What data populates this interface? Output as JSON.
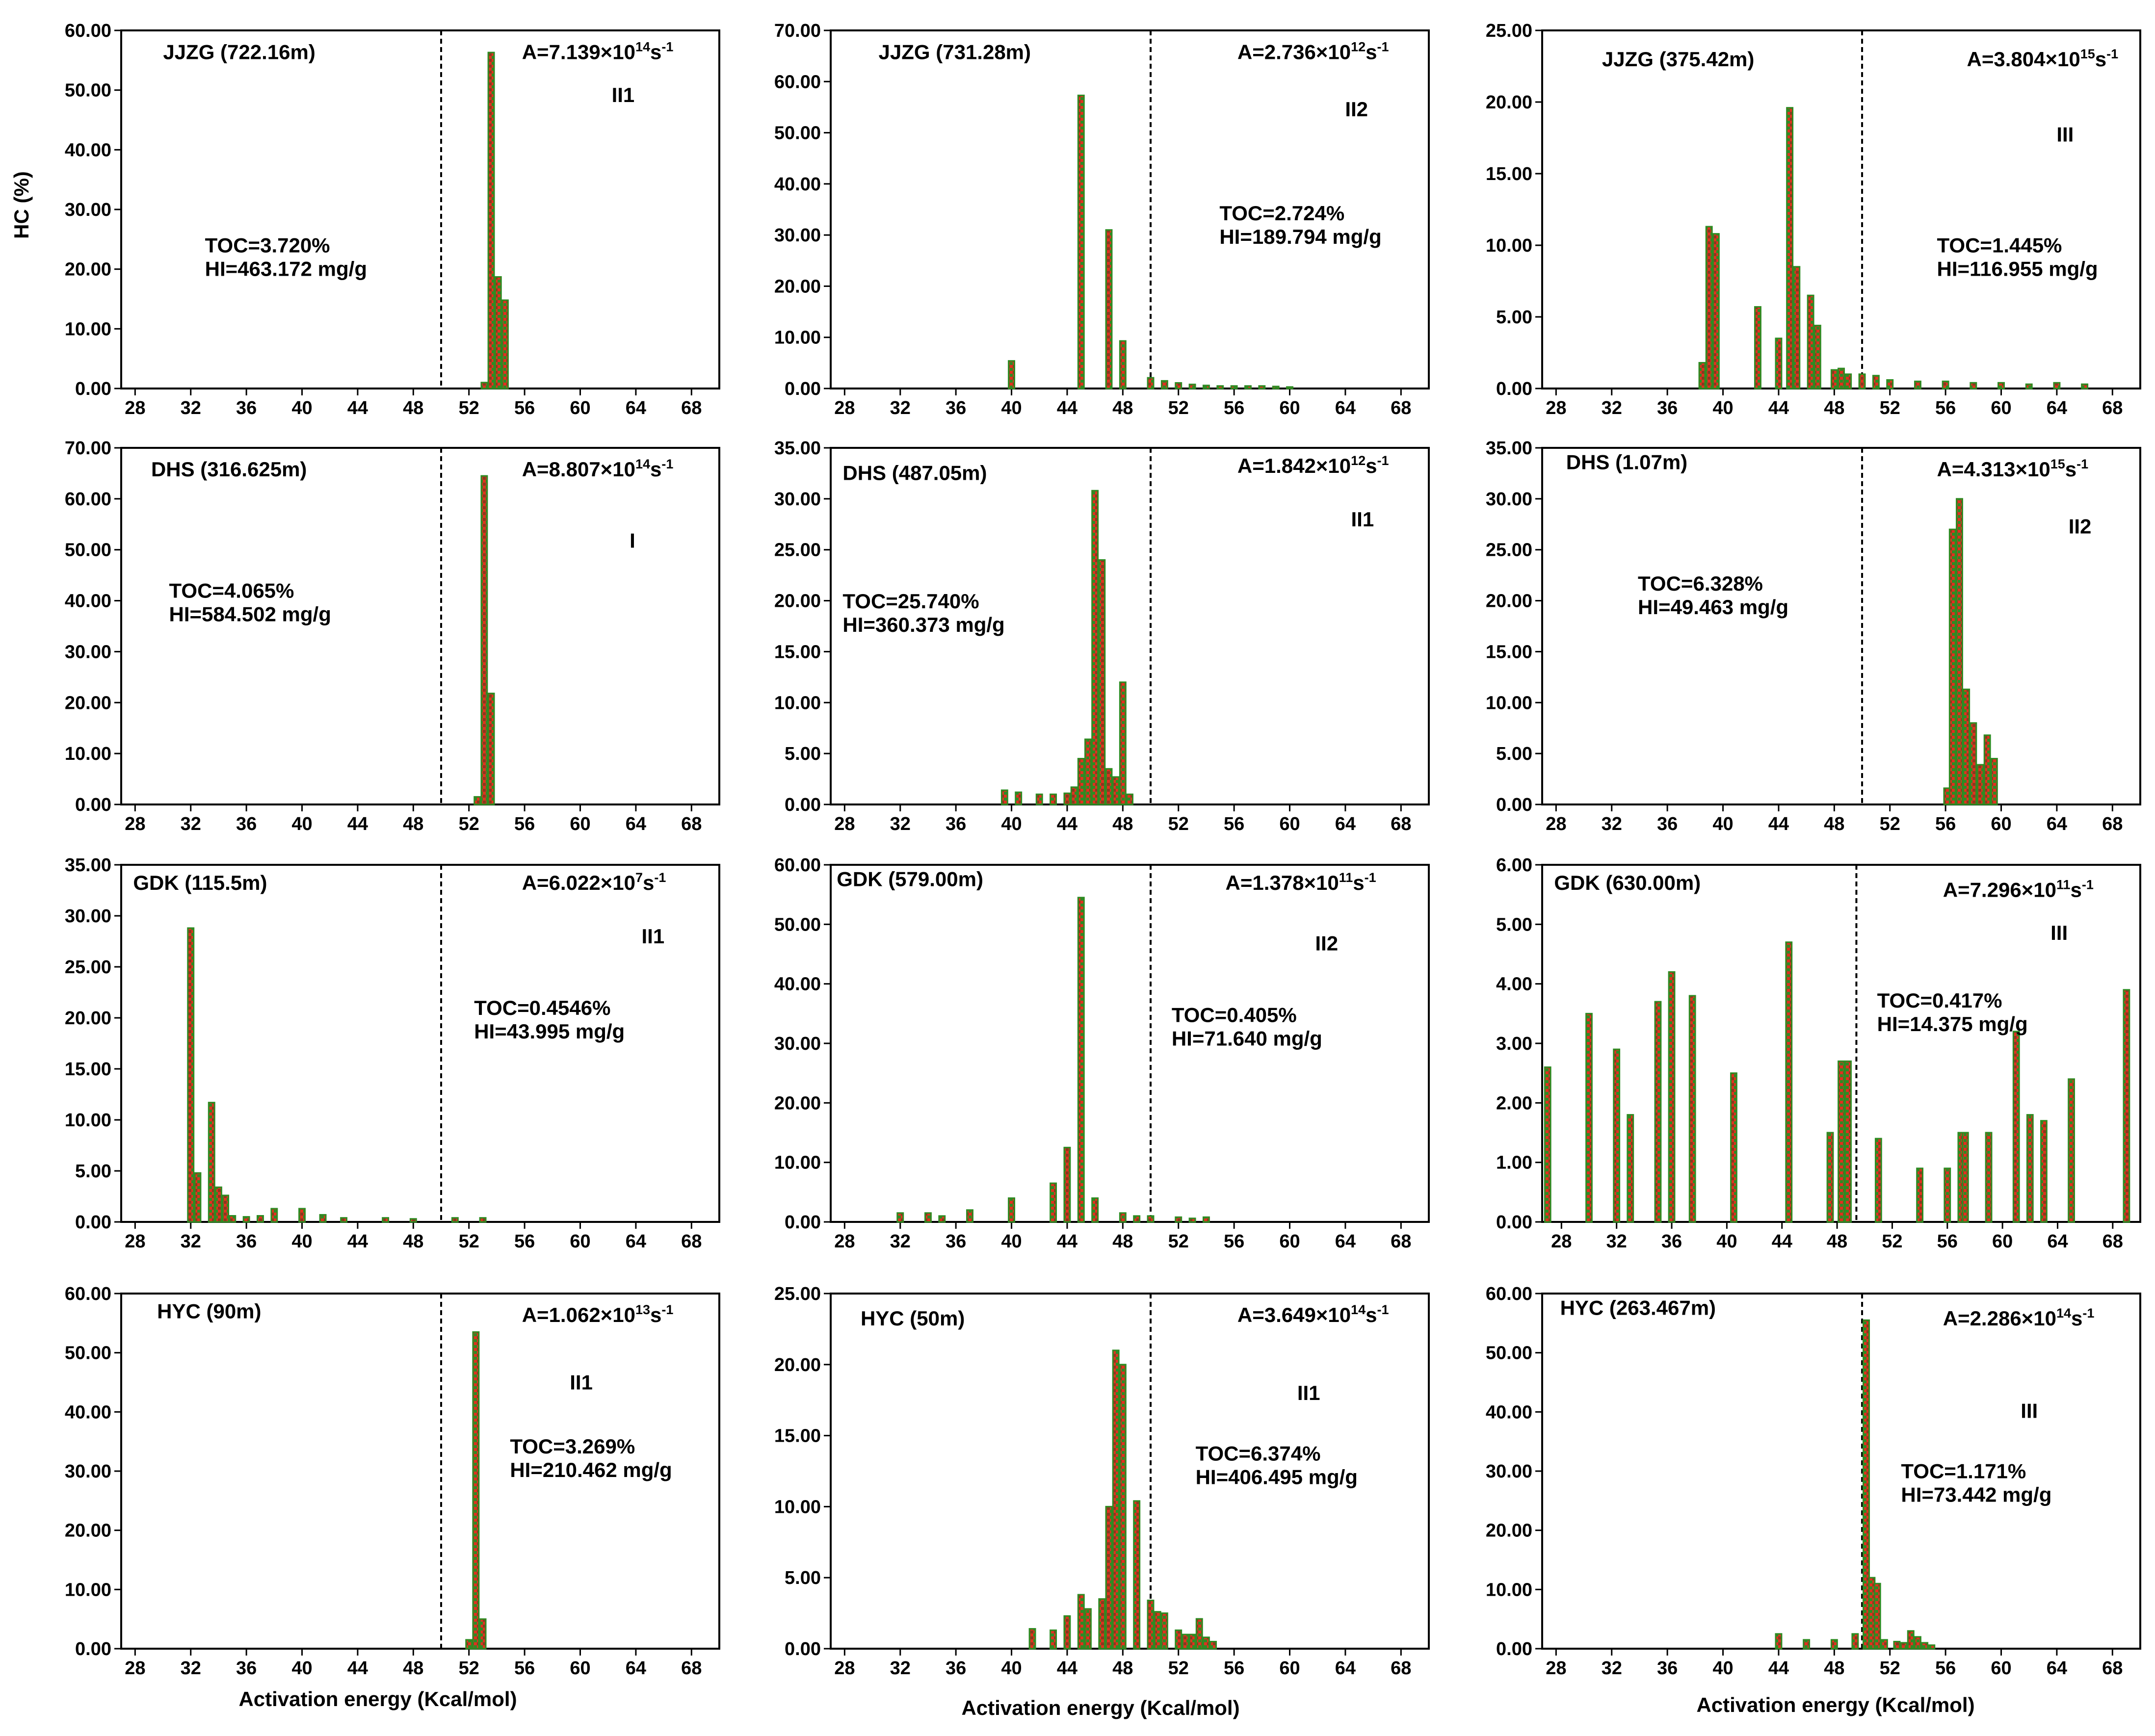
{
  "figure": {
    "ylabel": "HC (%)",
    "xlabel": "Activation energy (Kcal/mol)",
    "colors": {
      "bar_fill": "#e0321e",
      "bar_edge": "#2e8b22",
      "axis": "#000000"
    }
  },
  "chart_data": [
    {
      "type": "bar",
      "title": "JJZG (722.16m)",
      "a_prefix": "A=7.139×10",
      "a_exp": "14",
      "a_unit": "s",
      "a_unit_exp": "-1",
      "kerogen_type": "II1",
      "toc": "TOC=3.720%",
      "hi": "HI=463.172 mg/g",
      "xlabel": "Activation energy (Kcal/mol)",
      "ylabel": "HC (%)",
      "ylim": [
        0,
        60
      ],
      "xlim": [
        27,
        70
      ],
      "divider_x": 50,
      "yticks": [
        "0.00",
        "10.00",
        "20.00",
        "30.00",
        "40.00",
        "50.00",
        "60.00"
      ],
      "xticks": [
        "28",
        "32",
        "36",
        "40",
        "44",
        "48",
        "52",
        "56",
        "60",
        "64",
        "68"
      ],
      "x": [
        53.1,
        53.6,
        54.1,
        54.6
      ],
      "values": [
        1.0,
        56.3,
        18.7,
        14.8
      ]
    },
    {
      "type": "bar",
      "title": "JJZG (731.28m)",
      "a_prefix": "A=2.736×10",
      "a_exp": "12",
      "a_unit": "s",
      "a_unit_exp": "-1",
      "kerogen_type": "II2",
      "toc": "TOC=2.724%",
      "hi": "HI=189.794 mg/g",
      "xlabel": "Activation energy (Kcal/mol)",
      "ylabel": "HC (%)",
      "ylim": [
        0,
        70
      ],
      "xlim": [
        27,
        70
      ],
      "divider_x": 50,
      "yticks": [
        "0.00",
        "10.00",
        "20.00",
        "30.00",
        "40.00",
        "50.00",
        "60.00",
        "70.00"
      ],
      "xticks": [
        "28",
        "32",
        "36",
        "40",
        "44",
        "48",
        "52",
        "56",
        "60",
        "64",
        "68"
      ],
      "x": [
        40,
        45,
        47,
        48,
        50,
        51,
        52,
        53,
        54,
        55,
        56,
        57,
        58,
        59,
        60
      ],
      "values": [
        5.4,
        57.3,
        31.0,
        9.3,
        2.1,
        1.5,
        1.1,
        0.8,
        0.6,
        0.5,
        0.5,
        0.5,
        0.5,
        0.4,
        0.3
      ]
    },
    {
      "type": "bar",
      "title": "JJZG (375.42m)",
      "a_prefix": "A=3.804×10",
      "a_exp": "15",
      "a_unit": "s",
      "a_unit_exp": "-1",
      "kerogen_type": "III",
      "toc": "TOC=1.445%",
      "hi": "HI=116.955 mg/g",
      "xlabel": "Activation energy (Kcal/mol)",
      "ylabel": "HC (%)",
      "ylim": [
        0,
        25
      ],
      "xlim": [
        27,
        70
      ],
      "divider_x": 50,
      "yticks": [
        "0.00",
        "5.00",
        "10.00",
        "15.00",
        "20.00",
        "25.00"
      ],
      "xticks": [
        "28",
        "32",
        "36",
        "40",
        "44",
        "48",
        "52",
        "56",
        "60",
        "64",
        "68"
      ],
      "x": [
        38.5,
        39,
        39.5,
        42.5,
        44,
        44.8,
        45.3,
        46.3,
        46.8,
        48,
        48.5,
        49,
        50,
        51,
        52,
        54,
        56,
        58,
        60,
        62,
        64,
        66
      ],
      "values": [
        1.8,
        11.3,
        10.8,
        5.7,
        3.5,
        19.6,
        8.5,
        6.5,
        4.4,
        1.3,
        1.4,
        1.0,
        1.0,
        0.9,
        0.6,
        0.5,
        0.5,
        0.4,
        0.4,
        0.3,
        0.4,
        0.3
      ]
    },
    {
      "type": "bar",
      "title": "DHS (316.625m)",
      "a_prefix": "A=8.807×10",
      "a_exp": "14",
      "a_unit": "s",
      "a_unit_exp": "-1",
      "kerogen_type": "I",
      "toc": "TOC=4.065%",
      "hi": "HI=584.502 mg/g",
      "xlabel": "Activation energy (Kcal/mol)",
      "ylabel": "HC (%)",
      "ylim": [
        0,
        70
      ],
      "xlim": [
        27,
        70
      ],
      "divider_x": 50,
      "yticks": [
        "0.00",
        "10.00",
        "20.00",
        "30.00",
        "40.00",
        "50.00",
        "60.00",
        "70.00"
      ],
      "xticks": [
        "28",
        "32",
        "36",
        "40",
        "44",
        "48",
        "52",
        "56",
        "60",
        "64",
        "68"
      ],
      "x": [
        52.6,
        53.1,
        53.6
      ],
      "values": [
        1.5,
        64.5,
        21.8
      ]
    },
    {
      "type": "bar",
      "title": "DHS (487.05m)",
      "a_prefix": "A=1.842×10",
      "a_exp": "12",
      "a_unit": "s",
      "a_unit_exp": "-1",
      "kerogen_type": "II1",
      "toc": "TOC=25.740%",
      "hi": "HI=360.373 mg/g",
      "xlabel": "Activation energy (Kcal/mol)",
      "ylabel": "HC (%)",
      "ylim": [
        0,
        35
      ],
      "xlim": [
        27,
        70
      ],
      "divider_x": 50,
      "yticks": [
        "0.00",
        "5.00",
        "10.00",
        "15.00",
        "20.00",
        "25.00",
        "30.00",
        "35.00"
      ],
      "xticks": [
        "28",
        "32",
        "36",
        "40",
        "44",
        "48",
        "52",
        "56",
        "60",
        "64",
        "68"
      ],
      "x": [
        39.5,
        40.5,
        42,
        43,
        44,
        44.5,
        45,
        45.5,
        46,
        46.5,
        47,
        47.5,
        48,
        48.5
      ],
      "values": [
        1.4,
        1.2,
        1.0,
        1.0,
        1.1,
        1.7,
        4.5,
        6.4,
        30.8,
        24.0,
        3.5,
        2.7,
        12.0,
        1.0
      ]
    },
    {
      "type": "bar",
      "title": "DHS (1.07m)",
      "a_prefix": "A=4.313×10",
      "a_exp": "15",
      "a_unit": "s",
      "a_unit_exp": "-1",
      "kerogen_type": "II2",
      "toc": "TOC=6.328%",
      "hi": "HI=49.463 mg/g",
      "xlabel": "Activation energy (Kcal/mol)",
      "ylabel": "HC (%)",
      "ylim": [
        0,
        35
      ],
      "xlim": [
        27,
        70
      ],
      "divider_x": 50,
      "yticks": [
        "0.00",
        "5.00",
        "10.00",
        "15.00",
        "20.00",
        "25.00",
        "30.00",
        "35.00"
      ],
      "xticks": [
        "28",
        "32",
        "36",
        "40",
        "44",
        "48",
        "52",
        "56",
        "60",
        "64",
        "68"
      ],
      "x": [
        56.1,
        56.5,
        57,
        57.5,
        58,
        58.5,
        59,
        59.5
      ],
      "values": [
        1.6,
        27.0,
        30.0,
        11.3,
        8.0,
        3.9,
        6.8,
        4.5
      ]
    },
    {
      "type": "bar",
      "title": "GDK (115.5m)",
      "a_prefix": "A=6.022×10",
      "a_exp": "7",
      "a_unit": "s",
      "a_unit_exp": "-1",
      "kerogen_type": "II1",
      "toc": "TOC=0.4546%",
      "hi": "HI=43.995 mg/g",
      "xlabel": "Activation energy (Kcal/mol)",
      "ylabel": "HC (%)",
      "ylim": [
        0,
        35
      ],
      "xlim": [
        27,
        70
      ],
      "divider_x": 50,
      "yticks": [
        "0.00",
        "5.00",
        "10.00",
        "15.00",
        "20.00",
        "25.00",
        "30.00",
        "35.00"
      ],
      "xticks": [
        "28",
        "32",
        "36",
        "40",
        "44",
        "48",
        "52",
        "56",
        "60",
        "64",
        "68"
      ],
      "x": [
        32,
        32.5,
        33.5,
        34,
        34.5,
        35,
        36,
        37,
        38,
        40,
        41.5,
        43,
        46,
        48,
        51,
        53
      ],
      "values": [
        28.8,
        4.8,
        11.7,
        3.4,
        2.6,
        0.6,
        0.5,
        0.6,
        1.3,
        1.3,
        0.7,
        0.4,
        0.4,
        0.3,
        0.4,
        0.4
      ]
    },
    {
      "type": "bar",
      "title": "GDK (579.00m)",
      "a_prefix": "A=1.378×10",
      "a_exp": "11",
      "a_unit": "s",
      "a_unit_exp": "-1",
      "kerogen_type": "II2",
      "toc": "TOC=0.405%",
      "hi": "HI=71.640 mg/g",
      "xlabel": "Activation energy (Kcal/mol)",
      "ylabel": "HC (%)",
      "ylim": [
        0,
        60
      ],
      "xlim": [
        27,
        70
      ],
      "divider_x": 50,
      "yticks": [
        "0.00",
        "10.00",
        "20.00",
        "30.00",
        "40.00",
        "50.00",
        "60.00"
      ],
      "xticks": [
        "28",
        "32",
        "36",
        "40",
        "44",
        "48",
        "52",
        "56",
        "60",
        "64",
        "68"
      ],
      "x": [
        32,
        34,
        35,
        37,
        40,
        43,
        44,
        45,
        46,
        48,
        49,
        50,
        52,
        53,
        54
      ],
      "values": [
        1.5,
        1.5,
        1.0,
        2.0,
        4.0,
        6.5,
        12.5,
        54.5,
        4.0,
        1.5,
        1.0,
        1.0,
        0.8,
        0.6,
        0.8
      ]
    },
    {
      "type": "bar",
      "title": "GDK (630.00m)",
      "a_prefix": "A=7.296×10",
      "a_exp": "11",
      "a_unit": "s",
      "a_unit_exp": "-1",
      "kerogen_type": "III",
      "toc": "TOC=0.417%",
      "hi": "HI=14.375 mg/g",
      "xlabel": "Activation energy (Kcal/mol)",
      "ylabel": "HC (%)",
      "ylim": [
        0,
        6
      ],
      "xlim": [
        26.6,
        70
      ],
      "divider_x": 49.4,
      "yticks": [
        "0.00",
        "1.00",
        "2.00",
        "3.00",
        "4.00",
        "5.00",
        "6.00"
      ],
      "xticks": [
        "28",
        "32",
        "36",
        "40",
        "44",
        "48",
        "52",
        "56",
        "60",
        "64",
        "68"
      ],
      "x": [
        27,
        30,
        32,
        33,
        35,
        36,
        37.5,
        40.5,
        44.5,
        47.5,
        48.3,
        48.8,
        51,
        54,
        56,
        57,
        57.3,
        59,
        61,
        62,
        63,
        65,
        69
      ],
      "values": [
        2.6,
        3.5,
        2.9,
        1.8,
        3.7,
        4.2,
        3.8,
        2.5,
        4.7,
        1.5,
        2.7,
        2.7,
        1.4,
        0.9,
        0.9,
        1.5,
        1.5,
        1.5,
        3.2,
        1.8,
        1.7,
        2.4,
        3.9
      ]
    },
    {
      "type": "bar",
      "title": "HYC (90m)",
      "a_prefix": "A=1.062×10",
      "a_exp": "13",
      "a_unit": "s",
      "a_unit_exp": "-1",
      "kerogen_type": "II1",
      "toc": "TOC=3.269%",
      "hi": "HI=210.462 mg/g",
      "xlabel": "Activation energy (Kcal/mol)",
      "ylabel": "HC (%)",
      "ylim": [
        0,
        60
      ],
      "xlim": [
        27,
        70
      ],
      "divider_x": 50,
      "yticks": [
        "0.00",
        "10.00",
        "20.00",
        "30.00",
        "40.00",
        "50.00",
        "60.00"
      ],
      "xticks": [
        "28",
        "32",
        "36",
        "40",
        "44",
        "48",
        "52",
        "56",
        "60",
        "64",
        "68"
      ],
      "x": [
        52,
        52.5,
        53
      ],
      "values": [
        1.5,
        53.5,
        5.0
      ]
    },
    {
      "type": "bar",
      "title": "HYC (50m)",
      "a_prefix": "A=3.649×10",
      "a_exp": "14",
      "a_unit": "s",
      "a_unit_exp": "-1",
      "kerogen_type": "II1",
      "toc": "TOC=6.374%",
      "hi": "HI=406.495 mg/g",
      "xlabel": "Activation energy (Kcal/mol)",
      "ylabel": "HC (%)",
      "ylim": [
        0,
        25
      ],
      "xlim": [
        27,
        70
      ],
      "divider_x": 50,
      "yticks": [
        "0.00",
        "5.00",
        "10.00",
        "15.00",
        "20.00",
        "25.00"
      ],
      "xticks": [
        "28",
        "32",
        "36",
        "40",
        "44",
        "48",
        "52",
        "56",
        "60",
        "64",
        "68"
      ],
      "x": [
        41.5,
        43,
        44,
        45,
        45.5,
        46.5,
        47,
        47.5,
        48,
        49,
        50,
        50.5,
        51,
        52,
        52.5,
        53,
        53.5,
        54,
        54.5
      ],
      "values": [
        1.4,
        1.3,
        2.3,
        3.8,
        2.8,
        3.5,
        10.0,
        21.0,
        20.0,
        10.4,
        3.4,
        2.6,
        2.5,
        1.3,
        1.0,
        1.0,
        2.1,
        0.8,
        0.5
      ]
    },
    {
      "type": "bar",
      "title": "HYC (263.467m)",
      "a_prefix": "A=2.286×10",
      "a_exp": "14",
      "a_unit": "s",
      "a_unit_exp": "-1",
      "kerogen_type": "III",
      "toc": "TOC=1.171%",
      "hi": "HI=73.442 mg/g",
      "xlabel": "Activation energy (Kcal/mol)",
      "ylabel": "HC (%)",
      "ylim": [
        0,
        60
      ],
      "xlim": [
        27,
        70
      ],
      "divider_x": 50,
      "yticks": [
        "0.00",
        "10.00",
        "20.00",
        "30.00",
        "40.00",
        "50.00",
        "60.00"
      ],
      "xticks": [
        "28",
        "32",
        "36",
        "40",
        "44",
        "48",
        "52",
        "56",
        "60",
        "64",
        "68"
      ],
      "x": [
        44,
        46,
        48,
        49.5,
        50.3,
        50.7,
        51.1,
        51.6,
        52.5,
        53,
        53.5,
        54,
        54.5,
        55
      ],
      "values": [
        2.5,
        1.5,
        1.5,
        2.5,
        55.5,
        12.0,
        11.0,
        1.5,
        1.2,
        1.0,
        3.0,
        2.0,
        1.0,
        0.6
      ]
    }
  ]
}
